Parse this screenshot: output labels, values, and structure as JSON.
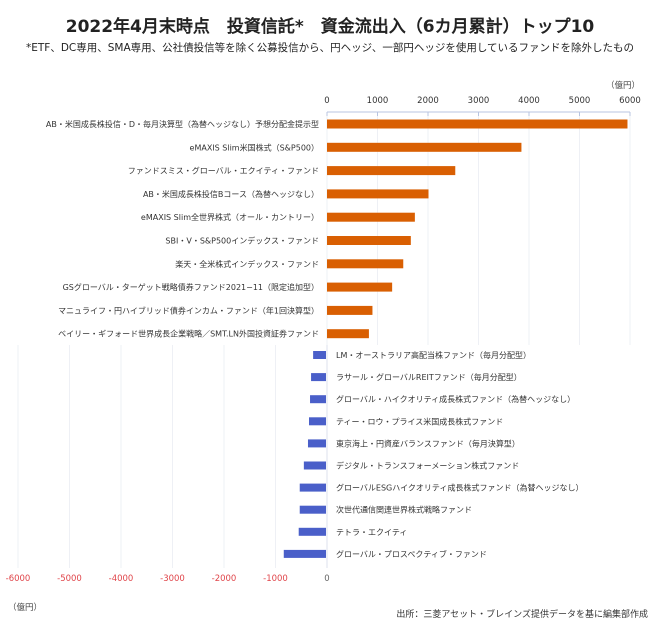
{
  "chart_data": {
    "type": "bar",
    "orientation": "horizontal",
    "title": "2022年4月末時点　投資信託*　資金流出入（6カ月累計）トップ10",
    "subtitle": "*ETF、DC専用、SMA専用、公社債投信等を除く公募投信から、円ヘッジ、一部円ヘッジを使用しているファンドを除外したもの",
    "unit": "（億円）",
    "unit_bottom": "（億円）",
    "source": "出所：三菱アセット・ブレインズ提供データを基に編集部作成",
    "top_axis": {
      "ticks": [
        "0",
        "1000",
        "2000",
        "3000",
        "4000",
        "5000",
        "6000"
      ],
      "range": [
        0,
        6000
      ]
    },
    "bottom_axis": {
      "ticks": [
        "-6000",
        "-5000",
        "-4000",
        "-3000",
        "-2000",
        "-1000",
        "0"
      ],
      "range": [
        -6000,
        0
      ]
    },
    "colors": {
      "inflow": "#d95f02",
      "outflow": "#4a5fc9",
      "negative_tick": "#e0454a"
    },
    "inflow": {
      "categories": [
        "AB・米国成長株投信・D・毎月決算型（為替ヘッジなし）予想分配金提示型",
        "eMAXIS Slim米国株式（S&P500）",
        "ファンドスミス・グローバル・エクイティ・ファンド",
        "AB・米国成長株投信Bコース（為替ヘッジなし）",
        "eMAXIS Slim全世界株式（オール・カントリー）",
        "SBI・V・S&P500インデックス・ファンド",
        "楽天・全米株式インデックス・ファンド",
        "GSグローバル・ターゲット戦略債券ファンド2021−11（限定追加型）",
        "マニュライフ・円ハイブリッド債券インカム・ファンド（年1回決算型）",
        "ベイリー・ギフォード世界成長企業戦略／SMT.LN外国投資証券ファンド"
      ],
      "values": [
        5950,
        3850,
        2540,
        2010,
        1740,
        1660,
        1510,
        1290,
        900,
        830
      ]
    },
    "outflow": {
      "categories": [
        "LM・オーストラリア高配当株ファンド（毎月分配型）",
        "ラサール・グローバルREITファンド（毎月分配型）",
        "グローバル・ハイクオリティ成長株式ファンド（為替ヘッジなし）",
        "ティー・ロウ・プライス米国成長株式ファンド",
        "東京海上・円資産バランスファンド（毎月決算型）",
        "デジタル・トランスフォーメーション株式ファンド",
        "グローバルESGハイクオリティ成長株式ファンド（為替ヘッジなし）",
        "次世代通信関連世界株式戦略ファンド",
        "テトラ・エクイティ",
        "グローバル・プロスペクティブ・ファンド"
      ],
      "values": [
        -250,
        -290,
        -310,
        -330,
        -350,
        -430,
        -510,
        -510,
        -530,
        -820
      ]
    }
  }
}
